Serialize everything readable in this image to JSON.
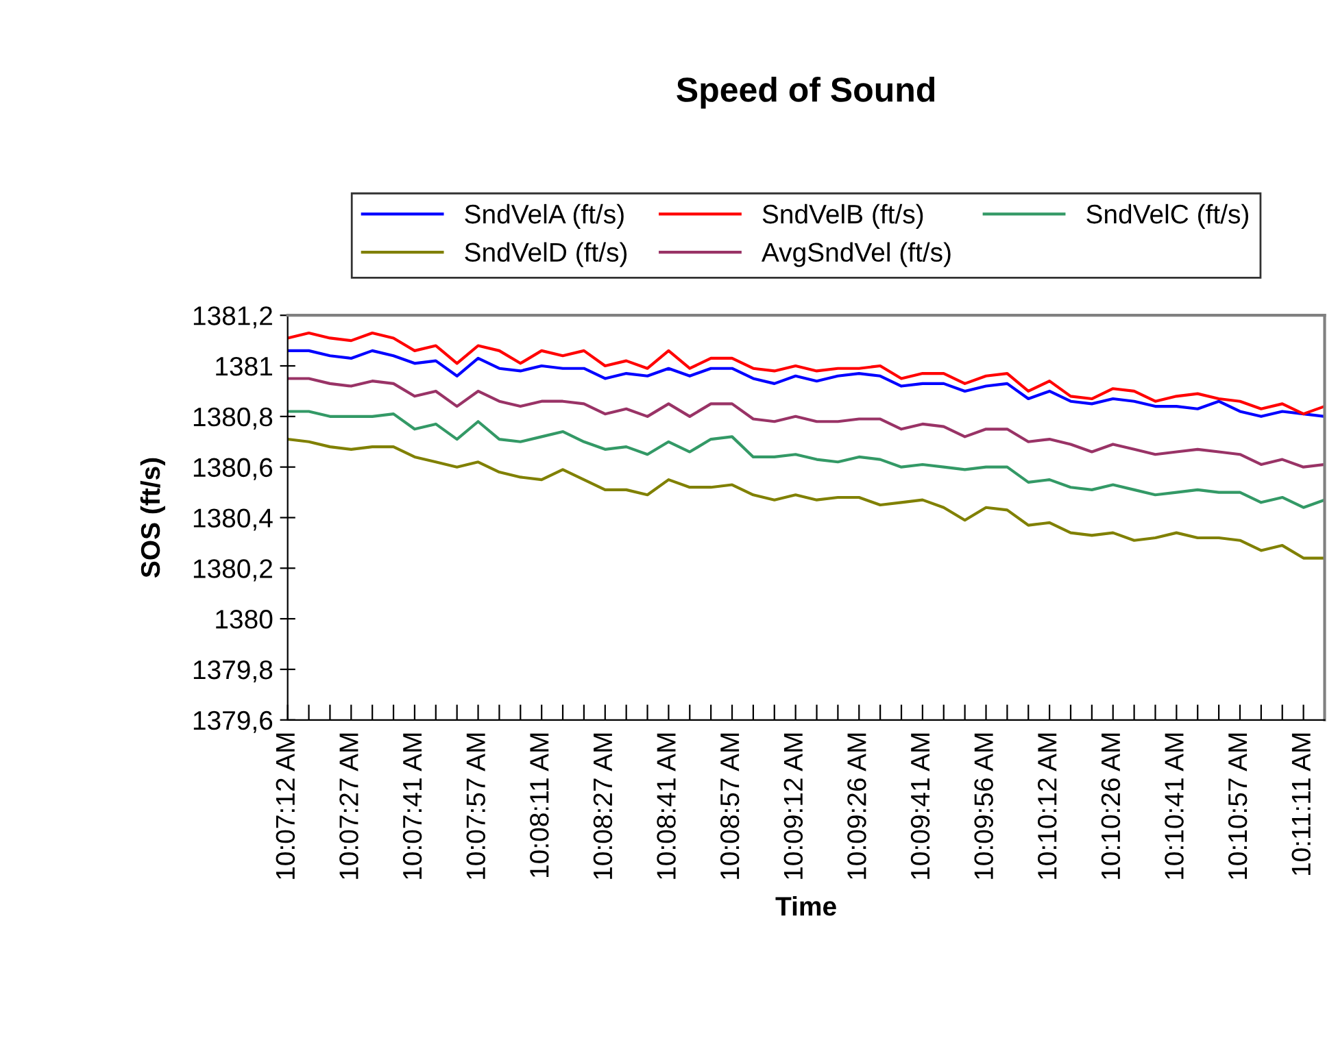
{
  "chart_data": {
    "type": "line",
    "title": "Speed of Sound",
    "xlabel": "Time",
    "ylabel": "SOS (ft/s)",
    "categories": [
      "10:07:12 AM",
      null,
      null,
      "10:07:27 AM",
      null,
      null,
      "10:07:41 AM",
      null,
      null,
      "10:07:57 AM",
      null,
      null,
      "10:08:11 AM",
      null,
      null,
      "10:08:27 AM",
      null,
      null,
      "10:08:41 AM",
      null,
      null,
      "10:08:57 AM",
      null,
      null,
      "10:09:12 AM",
      null,
      null,
      "10:09:26 AM",
      null,
      null,
      "10:09:41 AM",
      null,
      null,
      "10:09:56 AM",
      null,
      null,
      "10:10:12 AM",
      null,
      null,
      "10:10:26 AM",
      null,
      null,
      "10:10:41 AM",
      null,
      null,
      "10:10:57 AM",
      null,
      null,
      "10:11:11 AM",
      null
    ],
    "ylim": [
      1379.6,
      1381.2
    ],
    "yticks": [
      {
        "value": 1379.6,
        "label": "1379,6"
      },
      {
        "value": 1379.8,
        "label": "1379,8"
      },
      1380,
      {
        "value": 1380.2,
        "label": "1380,2"
      },
      {
        "value": 1380.4,
        "label": "1380,4"
      },
      {
        "value": 1380.6,
        "label": "1380,6"
      },
      {
        "value": 1380.8,
        "label": "1380,8"
      },
      1381,
      {
        "value": 1381.2,
        "label": "1381,2"
      }
    ],
    "grid": false,
    "legend": "top",
    "marker": "none",
    "line_style": "solid",
    "series": [
      {
        "name": "SndVelA (ft/s)",
        "color": "#0000ff",
        "values": [
          1381.06,
          1381.06,
          1381.04,
          1381.03,
          1381.06,
          1381.04,
          1381.01,
          1381.02,
          1380.96,
          1381.03,
          1380.99,
          1380.98,
          1381.0,
          1380.99,
          1380.99,
          1380.95,
          1380.97,
          1380.96,
          1380.99,
          1380.96,
          1380.99,
          1380.99,
          1380.95,
          1380.93,
          1380.96,
          1380.94,
          1380.96,
          1380.97,
          1380.96,
          1380.92,
          1380.93,
          1380.93,
          1380.9,
          1380.92,
          1380.93,
          1380.87,
          1380.9,
          1380.86,
          1380.85,
          1380.87,
          1380.86,
          1380.84,
          1380.84,
          1380.83,
          1380.86,
          1380.82,
          1380.8,
          1380.82,
          1380.81,
          1380.8
        ]
      },
      {
        "name": "SndVelB (ft/s)",
        "color": "#ff0000",
        "values": [
          1381.11,
          1381.13,
          1381.11,
          1381.1,
          1381.13,
          1381.11,
          1381.06,
          1381.08,
          1381.01,
          1381.08,
          1381.06,
          1381.01,
          1381.06,
          1381.04,
          1381.06,
          1381.0,
          1381.02,
          1380.99,
          1381.06,
          1380.99,
          1381.03,
          1381.03,
          1380.99,
          1380.98,
          1381.0,
          1380.98,
          1380.99,
          1380.99,
          1381.0,
          1380.95,
          1380.97,
          1380.97,
          1380.93,
          1380.96,
          1380.97,
          1380.9,
          1380.94,
          1380.88,
          1380.87,
          1380.91,
          1380.9,
          1380.86,
          1380.88,
          1380.89,
          1380.87,
          1380.86,
          1380.83,
          1380.85,
          1380.81,
          1380.84
        ]
      },
      {
        "name": "SndVelC (ft/s)",
        "color": "#339966",
        "values": [
          1380.82,
          1380.82,
          1380.8,
          1380.8,
          1380.8,
          1380.81,
          1380.75,
          1380.77,
          1380.71,
          1380.78,
          1380.71,
          1380.7,
          1380.72,
          1380.74,
          1380.7,
          1380.67,
          1380.68,
          1380.65,
          1380.7,
          1380.66,
          1380.71,
          1380.72,
          1380.64,
          1380.64,
          1380.65,
          1380.63,
          1380.62,
          1380.64,
          1380.63,
          1380.6,
          1380.61,
          1380.6,
          1380.59,
          1380.6,
          1380.6,
          1380.54,
          1380.55,
          1380.52,
          1380.51,
          1380.53,
          1380.51,
          1380.49,
          1380.5,
          1380.51,
          1380.5,
          1380.5,
          1380.46,
          1380.48,
          1380.44,
          1380.47
        ]
      },
      {
        "name": "SndVelD (ft/s)",
        "color": "#808000",
        "values": [
          1380.71,
          1380.7,
          1380.68,
          1380.67,
          1380.68,
          1380.68,
          1380.64,
          1380.62,
          1380.6,
          1380.62,
          1380.58,
          1380.56,
          1380.55,
          1380.59,
          1380.55,
          1380.51,
          1380.51,
          1380.49,
          1380.55,
          1380.52,
          1380.52,
          1380.53,
          1380.49,
          1380.47,
          1380.49,
          1380.47,
          1380.48,
          1380.48,
          1380.45,
          1380.46,
          1380.47,
          1380.44,
          1380.39,
          1380.44,
          1380.43,
          1380.37,
          1380.38,
          1380.34,
          1380.33,
          1380.34,
          1380.31,
          1380.32,
          1380.34,
          1380.32,
          1380.32,
          1380.31,
          1380.27,
          1380.29,
          1380.24,
          1380.24
        ]
      },
      {
        "name": "AvgSndVel (ft/s)",
        "color": "#993366",
        "values": [
          1380.95,
          1380.95,
          1380.93,
          1380.92,
          1380.94,
          1380.93,
          1380.88,
          1380.9,
          1380.84,
          1380.9,
          1380.86,
          1380.84,
          1380.86,
          1380.86,
          1380.85,
          1380.81,
          1380.83,
          1380.8,
          1380.85,
          1380.8,
          1380.85,
          1380.85,
          1380.79,
          1380.78,
          1380.8,
          1380.78,
          1380.78,
          1380.79,
          1380.79,
          1380.75,
          1380.77,
          1380.76,
          1380.72,
          1380.75,
          1380.75,
          1380.7,
          1380.71,
          1380.69,
          1380.66,
          1380.69,
          1380.67,
          1380.65,
          1380.66,
          1380.67,
          1380.66,
          1380.65,
          1380.61,
          1380.63,
          1380.6,
          1380.61
        ]
      }
    ]
  }
}
